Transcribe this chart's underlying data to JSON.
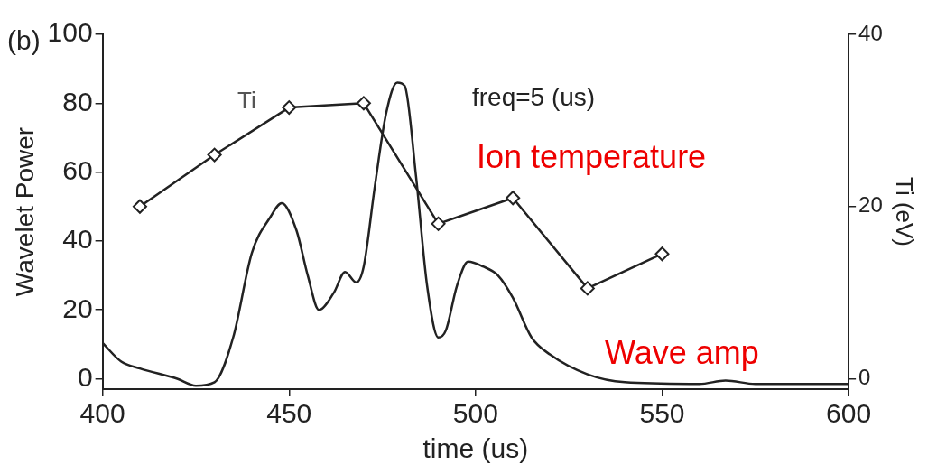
{
  "chart_data": {
    "type": "line",
    "xlabel": "time (us)",
    "ylabel": "Wavelet Power",
    "y2label": "Ti (eV)",
    "xlim": [
      400,
      600
    ],
    "xticks": [
      400,
      450,
      500,
      550,
      600
    ],
    "ylim": [
      -3,
      100
    ],
    "yticks": [
      0,
      20,
      40,
      60,
      80,
      100
    ],
    "y2lim": [
      -1.2,
      40
    ],
    "y2ticks": [
      0,
      20,
      40
    ],
    "grid": false,
    "legend": false,
    "series": [
      {
        "color": "#222222",
        "marker": "none",
        "x": [
          400,
          405,
          410,
          420,
          425,
          430,
          435,
          440,
          445,
          448,
          452,
          455,
          458,
          462,
          465,
          468,
          470,
          473,
          476,
          479,
          481,
          484,
          487,
          490,
          492,
          495,
          498,
          502,
          506,
          510,
          515,
          520,
          530,
          540,
          560,
          567,
          575,
          600
        ],
        "values": [
          10.4,
          5,
          3,
          0,
          -2,
          -1,
          12,
          36.5,
          47,
          51,
          43,
          30,
          20,
          25,
          31,
          28,
          32.6,
          56,
          77,
          86,
          85,
          59,
          27,
          12,
          14,
          27,
          34,
          32.6,
          30,
          23.5,
          12,
          7,
          1.3,
          -1,
          -1.5,
          -0.5,
          -1.5,
          -1.5
        ]
      },
      {
        "color": "#222222",
        "marker": "diamond",
        "axis": "y2",
        "x": [
          410,
          430,
          450,
          470,
          490,
          510,
          530,
          550
        ],
        "values": [
          20,
          26,
          31.5,
          32,
          18,
          21,
          10.5,
          14.5
        ]
      }
    ],
    "annotations": [
      "(b)",
      "Ti",
      "freq=5 (us)",
      "Ion temperature",
      "Wave amp"
    ]
  }
}
